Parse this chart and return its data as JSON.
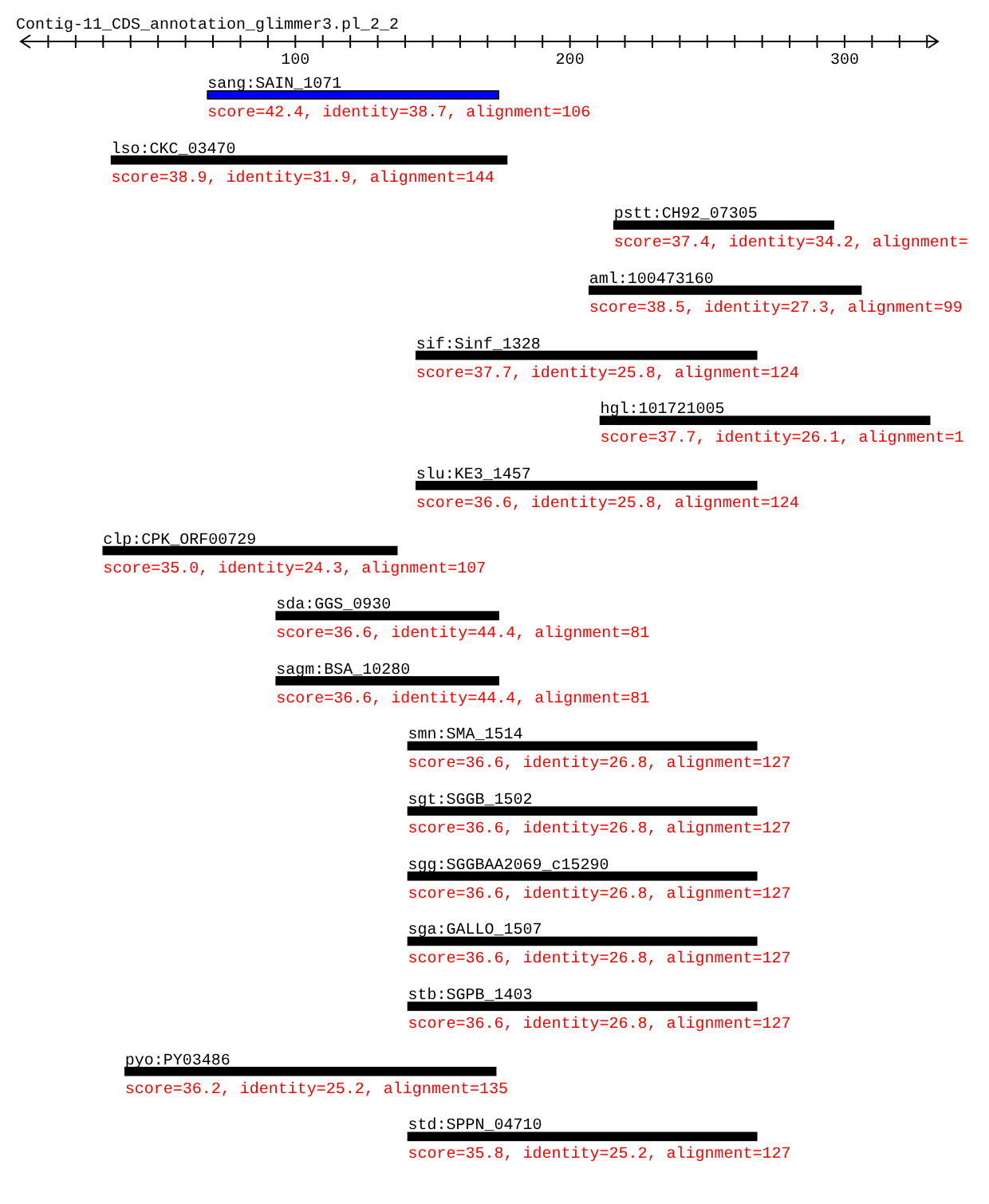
{
  "chart_data": {
    "type": "bar",
    "orientation": "horizontal",
    "title": "Contig-11_CDS_annotation_glimmer3.pl_2_2",
    "categories": [
      "sang:SAIN_1071",
      "lso:CKC_03470",
      "pstt:CH92_07305",
      "aml:100473160",
      "sif:Sinf_1328",
      "hgl:101721005",
      "slu:KE3_1457",
      "clp:CPK_ORF00729",
      "sda:GGS_0930",
      "sagm:BSA_10280",
      "smn:SMA_1514",
      "sgt:SGGB_1502",
      "sgg:SGGBAA2069_c15290",
      "sga:GALLO_1507",
      "stb:SGPB_1403",
      "pyo:PY03486",
      "std:SPPN_04710"
    ],
    "base": [
      68,
      33,
      216,
      207,
      144,
      211,
      144,
      30,
      93,
      93,
      141,
      141,
      141,
      141,
      141,
      38,
      141
    ],
    "values": [
      106,
      144,
      80,
      99,
      124,
      120,
      124,
      107,
      81,
      81,
      127,
      127,
      127,
      127,
      127,
      135,
      127
    ],
    "colors": [
      "#0000ff",
      "#000000",
      "#000000",
      "#000000",
      "#000000",
      "#000000",
      "#000000",
      "#000000",
      "#000000",
      "#000000",
      "#000000",
      "#000000",
      "#000000",
      "#000000",
      "#000000",
      "#000000",
      "#000000"
    ],
    "annotations": [
      {
        "text": "score=42.4, identity=38.7, alignment=106",
        "x": 68,
        "y": "sang:SAIN_1071"
      },
      {
        "text": "score=38.9, identity=31.9, alignment=144",
        "x": 33,
        "y": "lso:CKC_03470"
      },
      {
        "text": "score=37.4, identity=34.2, alignment=",
        "x": 216,
        "y": "pstt:CH92_07305"
      },
      {
        "text": "score=38.5, identity=27.3, alignment=99",
        "x": 207,
        "y": "aml:100473160"
      },
      {
        "text": "score=37.7, identity=25.8, alignment=124",
        "x": 144,
        "y": "sif:Sinf_1328"
      },
      {
        "text": "score=37.7, identity=26.1, alignment=1",
        "x": 211,
        "y": "hgl:101721005"
      },
      {
        "text": "score=36.6, identity=25.8, alignment=124",
        "x": 144,
        "y": "slu:KE3_1457"
      },
      {
        "text": "score=35.0, identity=24.3, alignment=107",
        "x": 30,
        "y": "clp:CPK_ORF00729"
      },
      {
        "text": "score=36.6, identity=44.4, alignment=81",
        "x": 93,
        "y": "sda:GGS_0930"
      },
      {
        "text": "score=36.6, identity=44.4, alignment=81",
        "x": 93,
        "y": "sagm:BSA_10280"
      },
      {
        "text": "score=36.6, identity=26.8, alignment=127",
        "x": 141,
        "y": "smn:SMA_1514"
      },
      {
        "text": "score=36.6, identity=26.8, alignment=127",
        "x": 141,
        "y": "sgt:SGGB_1502"
      },
      {
        "text": "score=36.6, identity=26.8, alignment=127",
        "x": 141,
        "y": "sgg:SGGBAA2069_c15290"
      },
      {
        "text": "score=36.6, identity=26.8, alignment=127",
        "x": 141,
        "y": "sga:GALLO_1507"
      },
      {
        "text": "score=36.6, identity=26.8, alignment=127",
        "x": 141,
        "y": "stb:SGPB_1403"
      },
      {
        "text": "score=36.2, identity=25.2, alignment=135",
        "x": 38,
        "y": "pyo:PY03486"
      },
      {
        "text": "score=35.8, identity=25.2, alignment=127",
        "x": 141,
        "y": "std:SPPN_04710"
      }
    ],
    "xlim": [
      0,
      334
    ],
    "xticks": [
      {
        "value": 10,
        "label": null
      },
      {
        "value": 20,
        "label": null
      },
      {
        "value": 30,
        "label": null
      },
      {
        "value": 40,
        "label": null
      },
      {
        "value": 50,
        "label": null
      },
      {
        "value": 60,
        "label": null
      },
      {
        "value": 70,
        "label": null
      },
      {
        "value": 80,
        "label": null
      },
      {
        "value": 90,
        "label": null
      },
      100,
      {
        "value": 110,
        "label": null
      },
      {
        "value": 120,
        "label": null
      },
      {
        "value": 130,
        "label": null
      },
      {
        "value": 140,
        "label": null
      },
      {
        "value": 150,
        "label": null
      },
      {
        "value": 160,
        "label": null
      },
      {
        "value": 170,
        "label": null
      },
      {
        "value": 180,
        "label": null
      },
      {
        "value": 190,
        "label": null
      },
      200,
      {
        "value": 210,
        "label": null
      },
      {
        "value": 220,
        "label": null
      },
      {
        "value": 230,
        "label": null
      },
      {
        "value": 240,
        "label": null
      },
      {
        "value": 250,
        "label": null
      },
      {
        "value": 260,
        "label": null
      },
      {
        "value": 270,
        "label": null
      },
      {
        "value": 280,
        "label": null
      },
      {
        "value": 290,
        "label": null
      },
      300,
      {
        "value": 310,
        "label": null
      },
      {
        "value": 320,
        "label": null
      },
      {
        "value": 330,
        "label": null
      }
    ]
  }
}
